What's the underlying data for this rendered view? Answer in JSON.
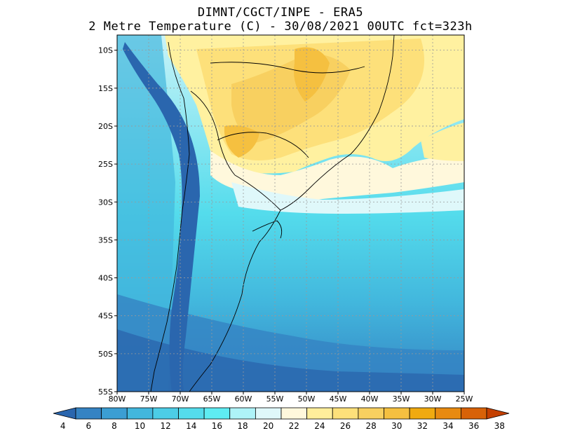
{
  "title_line1": "DIMNT/CGCT/INPE  -   ERA5",
  "title_line2": "2 Metre Temperature (C) -   30/08/2021 00UTC fct=323h",
  "map": {
    "lon_range": [
      -80,
      -25
    ],
    "lat_range": [
      -55,
      -8
    ],
    "lat_ticks": [
      {
        "value": -10,
        "label": "10S"
      },
      {
        "value": -15,
        "label": "15S"
      },
      {
        "value": -20,
        "label": "20S"
      },
      {
        "value": -25,
        "label": "25S"
      },
      {
        "value": -30,
        "label": "30S"
      },
      {
        "value": -35,
        "label": "35S"
      },
      {
        "value": -40,
        "label": "40S"
      },
      {
        "value": -45,
        "label": "45S"
      },
      {
        "value": -50,
        "label": "50S"
      },
      {
        "value": -55,
        "label": "55S"
      }
    ],
    "lon_ticks": [
      {
        "value": -80,
        "label": "80W"
      },
      {
        "value": -75,
        "label": "75W"
      },
      {
        "value": -70,
        "label": "70W"
      },
      {
        "value": -65,
        "label": "65W"
      },
      {
        "value": -60,
        "label": "60W"
      },
      {
        "value": -55,
        "label": "55W"
      },
      {
        "value": -50,
        "label": "50W"
      },
      {
        "value": -45,
        "label": "45W"
      },
      {
        "value": -40,
        "label": "40W"
      },
      {
        "value": -35,
        "label": "35W"
      },
      {
        "value": -30,
        "label": "30W"
      },
      {
        "value": -25,
        "label": "25W"
      }
    ],
    "gridlines": true
  },
  "colorbar": {
    "labels": [
      "4",
      "6",
      "8",
      "10",
      "12",
      "14",
      "16",
      "18",
      "20",
      "22",
      "24",
      "26",
      "28",
      "30",
      "32",
      "34",
      "36",
      "38"
    ],
    "colors": [
      "#2a66ae",
      "#3583c3",
      "#3b9ed3",
      "#42b7dd",
      "#4ccde6",
      "#54dcec",
      "#5eecf2",
      "#aef3f8",
      "#dff8fa",
      "#fff8dc",
      "#ffee9b",
      "#fde07a",
      "#f8d060",
      "#f5c040",
      "#f0aa10",
      "#e88a10",
      "#d86208",
      "#c44000"
    ]
  }
}
